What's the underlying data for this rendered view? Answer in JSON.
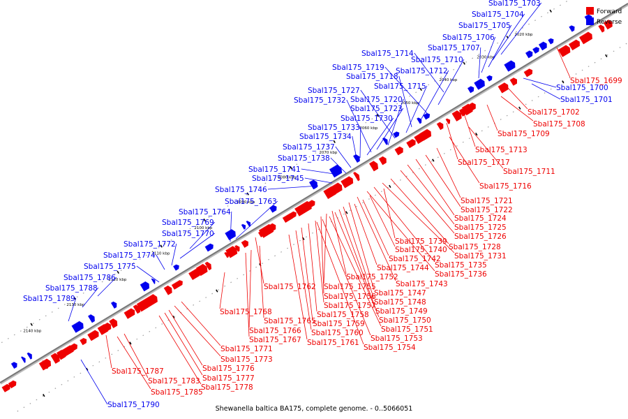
{
  "caption": "Shewanella baltica BA175, complete genome. - 0..5066051",
  "legend": [
    {
      "label": "Forward",
      "color": "#ee0000"
    },
    {
      "label": "Reverse",
      "color": "#0000ee"
    }
  ],
  "colors": {
    "forward": "#ee0000",
    "reverse": "#0000ee",
    "backbone": "#777777"
  },
  "kbp_ticks": [
    "2020 kbp",
    "2030 kbp",
    "2040 kbp",
    "2050 kbp",
    "2060 kbp",
    "2070 kbp",
    "2080 kbp",
    "2090 kbp",
    "2100 kbp",
    "2110 kbp",
    "2120 kbp",
    "2130 kbp",
    "2140 kbp"
  ],
  "reverse_genes": [
    "Sbal175_1703",
    "Sbal175_1704",
    "Sbal175_1705",
    "Sbal175_1706",
    "Sbal175_1707",
    "Sbal175_1714",
    "Sbal175_1710",
    "Sbal175_1719",
    "Sbal175_1712",
    "Sbal175_1718",
    "Sbal175_1715",
    "Sbal175_1727",
    "Sbal175_1720",
    "Sbal175_1732",
    "Sbal175_1730",
    "Sbal175_1723",
    "Sbal175_1733",
    "Sbal175_1734",
    "Sbal175_1737",
    "Sbal175_1738",
    "Sbal175_1741",
    "Sbal175_1745",
    "Sbal175_1746",
    "Sbal175_1763",
    "Sbal175_1764",
    "Sbal175_1769",
    "Sbal175_1770",
    "Sbal175_1772",
    "Sbal175_1774",
    "Sbal175_1775",
    "Sbal175_1786",
    "Sbal175_1788",
    "Sbal175_1789",
    "Sbal175_1700",
    "Sbal175_1701",
    "Sbal175_1790"
  ],
  "forward_genes": [
    "Sbal175_1699",
    "Sbal175_1702",
    "Sbal175_1708",
    "Sbal175_1709",
    "Sbal175_1713",
    "Sbal175_1717",
    "Sbal175_1711",
    "Sbal175_1716",
    "Sbal175_1721",
    "Sbal175_1722",
    "Sbal175_1724",
    "Sbal175_1725",
    "Sbal175_1726",
    "Sbal175_1739",
    "Sbal175_1728",
    "Sbal175_1740",
    "Sbal175_1731",
    "Sbal175_1742",
    "Sbal175_1735",
    "Sbal175_1744",
    "Sbal175_1736",
    "Sbal175_1752",
    "Sbal175_1743",
    "Sbal175_1762",
    "Sbal175_1755",
    "Sbal175_1747",
    "Sbal175_1756",
    "Sbal175_1748",
    "Sbal175_1757",
    "Sbal175_1749",
    "Sbal175_1768",
    "Sbal175_1758",
    "Sbal175_1750",
    "Sbal175_1765",
    "Sbal175_1759",
    "Sbal175_1751",
    "Sbal175_1766",
    "Sbal175_1760",
    "Sbal175_1753",
    "Sbal175_1767",
    "Sbal175_1761",
    "Sbal175_1754",
    "Sbal175_1771",
    "Sbal175_1773",
    "Sbal175_1776",
    "Sbal175_1777",
    "Sbal175_1787",
    "Sbal175_1778",
    "Sbal175_1783",
    "Sbal175_1785"
  ]
}
